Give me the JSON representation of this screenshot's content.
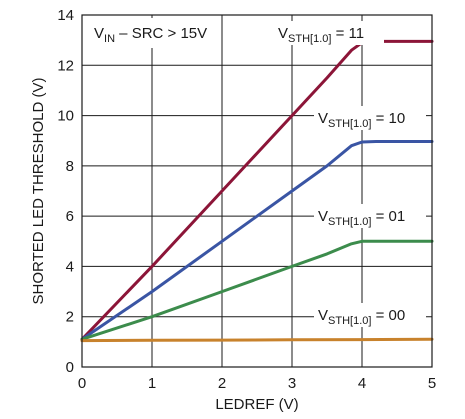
{
  "chart_data": {
    "type": "line",
    "title": "",
    "xlabel": "LEDREF (V)",
    "ylabel": "SHORTED LED THRESHOLD (V)",
    "xlim": [
      0,
      5
    ],
    "ylim": [
      0,
      14
    ],
    "xticks": [
      "0",
      "1",
      "2",
      "3",
      "4",
      "5"
    ],
    "yticks": [
      "0",
      "2",
      "4",
      "6",
      "8",
      "10",
      "12",
      "14"
    ],
    "grid": true,
    "condition": {
      "main": "V",
      "sub": "IN",
      "rest": " – SRC > 15V"
    },
    "series": [
      {
        "label_main": "V",
        "label_sub": "STH[1.0]",
        "label_rest": " = 11",
        "color": "#8c1538",
        "x": [
          0,
          1,
          2,
          3,
          3.5,
          3.85,
          4.0,
          4.2,
          5.0
        ],
        "y": [
          1.1,
          4.0,
          7.0,
          10.0,
          11.5,
          12.6,
          12.9,
          12.95,
          12.95
        ]
      },
      {
        "label_main": "V",
        "label_sub": "STH[1.0]",
        "label_rest": " = 10",
        "color": "#3a55a4",
        "x": [
          0,
          1,
          2,
          3,
          3.5,
          3.85,
          4.0,
          4.2,
          5.0
        ],
        "y": [
          1.1,
          3.0,
          5.0,
          7.0,
          8.0,
          8.8,
          8.95,
          8.97,
          8.97
        ]
      },
      {
        "label_main": "V",
        "label_sub": "STH[1.0]",
        "label_rest": " = 01",
        "color": "#3c8c4c",
        "x": [
          0,
          1,
          2,
          3,
          3.5,
          3.85,
          4.0,
          4.2,
          5.0
        ],
        "y": [
          1.1,
          2.0,
          3.0,
          4.0,
          4.5,
          4.9,
          5.0,
          5.0,
          5.0
        ]
      },
      {
        "label_main": "V",
        "label_sub": "STH[1.0]",
        "label_rest": " = 00",
        "color": "#c8822c",
        "x": [
          0,
          1,
          2,
          3,
          4,
          5
        ],
        "y": [
          1.05,
          1.06,
          1.07,
          1.08,
          1.09,
          1.1
        ]
      }
    ]
  }
}
